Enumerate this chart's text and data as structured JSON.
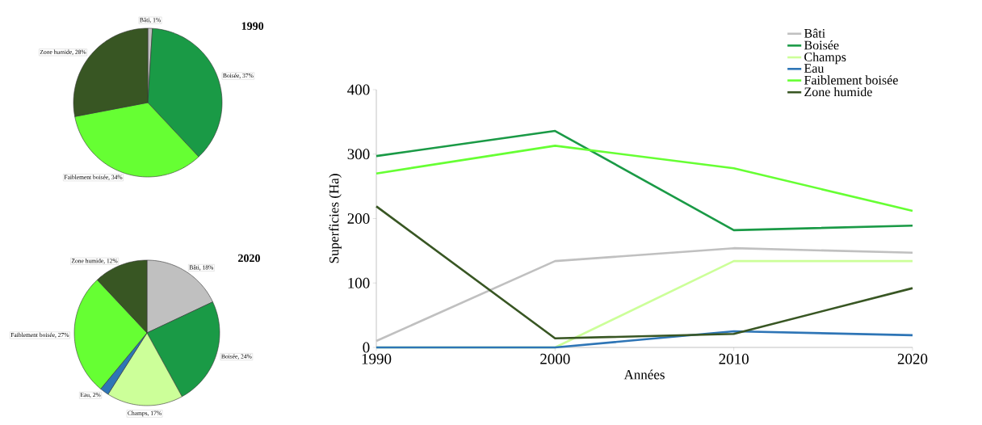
{
  "chart_data": [
    {
      "type": "pie",
      "title": "1990",
      "categories": [
        "Bâti",
        "Boisée",
        "Faiblement boisée",
        "Zone humide"
      ],
      "values": [
        1,
        37,
        34,
        28
      ],
      "colors": [
        "#c0c0c0",
        "#1a9a46",
        "#66ff33",
        "#385623"
      ],
      "value_labels": [
        ", 1%",
        ", 37%",
        ", 34%",
        ", 28%"
      ]
    },
    {
      "type": "pie",
      "title": "2020",
      "categories": [
        "Bâti",
        "Boisée",
        "Champs",
        "Eau",
        "Faiblement boisée",
        "Zone humide"
      ],
      "values": [
        18,
        24,
        17,
        2,
        27,
        12
      ],
      "colors": [
        "#c0c0c0",
        "#1a9a46",
        "#ccff99",
        "#2e75b6",
        "#66ff33",
        "#385623"
      ],
      "value_labels": [
        ", 18%",
        ", 24%",
        ", 17%",
        ", 2%",
        ", 27%",
        ", 12%"
      ]
    },
    {
      "type": "line",
      "xlabel": "Années",
      "ylabel": "Superficies (Ha)",
      "x": [
        1990,
        2000,
        2010,
        2020
      ],
      "xlim": [
        1990,
        2020
      ],
      "xticks": [
        1990,
        2000,
        2010,
        2020
      ],
      "ylim": [
        0,
        400
      ],
      "yticks": [
        0,
        100,
        200,
        300,
        400
      ],
      "legend": "top right",
      "series": [
        {
          "name": "Bâti",
          "color": "#c0c0c0",
          "values": [
            10,
            134,
            154,
            147
          ]
        },
        {
          "name": "Boisée",
          "color": "#1a9a46",
          "values": [
            297,
            336,
            182,
            189
          ]
        },
        {
          "name": "Champs",
          "color": "#ccff99",
          "values": [
            0,
            0,
            134,
            134
          ]
        },
        {
          "name": "Eau",
          "color": "#2e75b6",
          "values": [
            0,
            0,
            25,
            19
          ]
        },
        {
          "name": "Faiblement boisée",
          "color": "#66ff33",
          "values": [
            270,
            313,
            278,
            212
          ]
        },
        {
          "name": "Zone humide",
          "color": "#385623",
          "values": [
            219,
            14,
            21,
            92
          ]
        }
      ]
    }
  ]
}
